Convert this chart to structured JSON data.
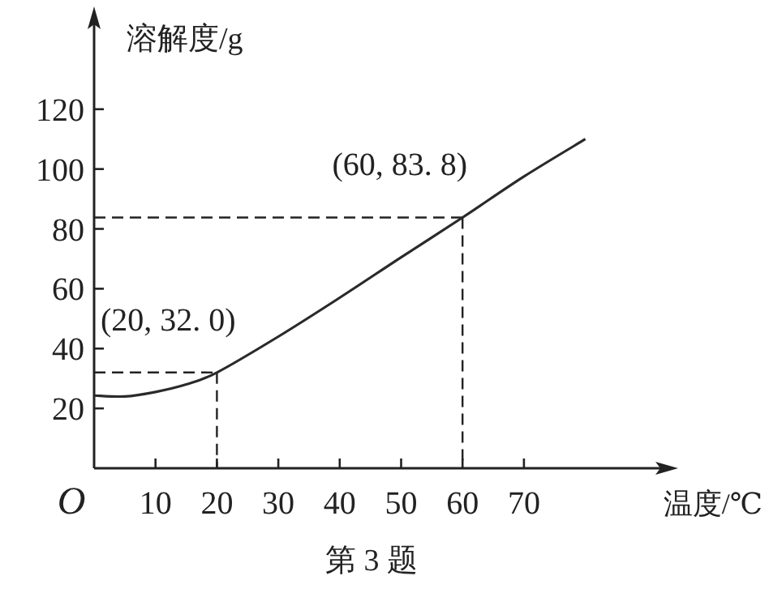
{
  "chart_data": {
    "type": "line",
    "xlabel": "温度/℃",
    "ylabel": "溶解度/g",
    "color": "#2a2a2a",
    "line_style": "solid",
    "x": [
      0,
      5,
      10,
      15,
      20,
      30,
      40,
      50,
      60,
      70,
      80
    ],
    "values": [
      24.3,
      24,
      25.5,
      28,
      32,
      44,
      57,
      70.5,
      83.8,
      97.5,
      110
    ],
    "xlim": [
      0,
      93
    ],
    "ylim": [
      0,
      150
    ],
    "xticks": [
      {
        "value": 0,
        "label": "O"
      },
      10,
      20,
      30,
      40,
      50,
      60,
      70
    ],
    "yticks": [
      {
        "value": 0,
        "label": null
      },
      20,
      40,
      60,
      80,
      100,
      120
    ],
    "annotations": [
      {
        "text": "(20, 32. 0)",
        "x": 20,
        "y": 32
      },
      {
        "text": "(60, 83. 8)",
        "x": 60,
        "y": 83.8
      },
      "第 3 题"
    ]
  }
}
